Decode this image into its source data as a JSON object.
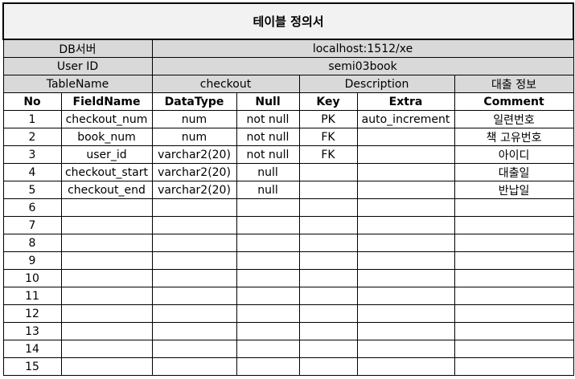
{
  "title": "테이블 정의서",
  "db_server": {
    "label": "DB서버",
    "value": "localhost:1512/xe"
  },
  "user_id": {
    "label": "User ID",
    "value": "semi03book"
  },
  "table_info": {
    "label": "TableName",
    "name": "checkout",
    "desc_label": "Description",
    "desc": "대출 정보"
  },
  "columns": [
    "No",
    "FieldName",
    "DataType",
    "Null",
    "Key",
    "Extra",
    "Comment"
  ],
  "rows": [
    {
      "no": "1",
      "field": "checkout_num",
      "type": "num",
      "null": "not null",
      "key": "PK",
      "extra": "auto_increment",
      "comment": "일련번호"
    },
    {
      "no": "2",
      "field": "book_num",
      "type": "num",
      "null": "not null",
      "key": "FK",
      "extra": "",
      "comment": "책 고유번호"
    },
    {
      "no": "3",
      "field": "user_id",
      "type": "varchar2(20)",
      "null": "not null",
      "key": "FK",
      "extra": "",
      "comment": "아이디"
    },
    {
      "no": "4",
      "field": "checkout_start",
      "type": "varchar2(20)",
      "null": "null",
      "key": "",
      "extra": "",
      "comment": "대출일"
    },
    {
      "no": "5",
      "field": "checkout_end",
      "type": "varchar2(20)",
      "null": "null",
      "key": "",
      "extra": "",
      "comment": "반납일"
    },
    {
      "no": "6",
      "field": "",
      "type": "",
      "null": "",
      "key": "",
      "extra": "",
      "comment": ""
    },
    {
      "no": "7",
      "field": "",
      "type": "",
      "null": "",
      "key": "",
      "extra": "",
      "comment": ""
    },
    {
      "no": "8",
      "field": "",
      "type": "",
      "null": "",
      "key": "",
      "extra": "",
      "comment": ""
    },
    {
      "no": "9",
      "field": "",
      "type": "",
      "null": "",
      "key": "",
      "extra": "",
      "comment": ""
    },
    {
      "no": "10",
      "field": "",
      "type": "",
      "null": "",
      "key": "",
      "extra": "",
      "comment": ""
    },
    {
      "no": "11",
      "field": "",
      "type": "",
      "null": "",
      "key": "",
      "extra": "",
      "comment": ""
    },
    {
      "no": "12",
      "field": "",
      "type": "",
      "null": "",
      "key": "",
      "extra": "",
      "comment": ""
    },
    {
      "no": "13",
      "field": "",
      "type": "",
      "null": "",
      "key": "",
      "extra": "",
      "comment": ""
    },
    {
      "no": "14",
      "field": "",
      "type": "",
      "null": "",
      "key": "",
      "extra": "",
      "comment": ""
    },
    {
      "no": "15",
      "field": "",
      "type": "",
      "null": "",
      "key": "",
      "extra": "",
      "comment": ""
    }
  ]
}
